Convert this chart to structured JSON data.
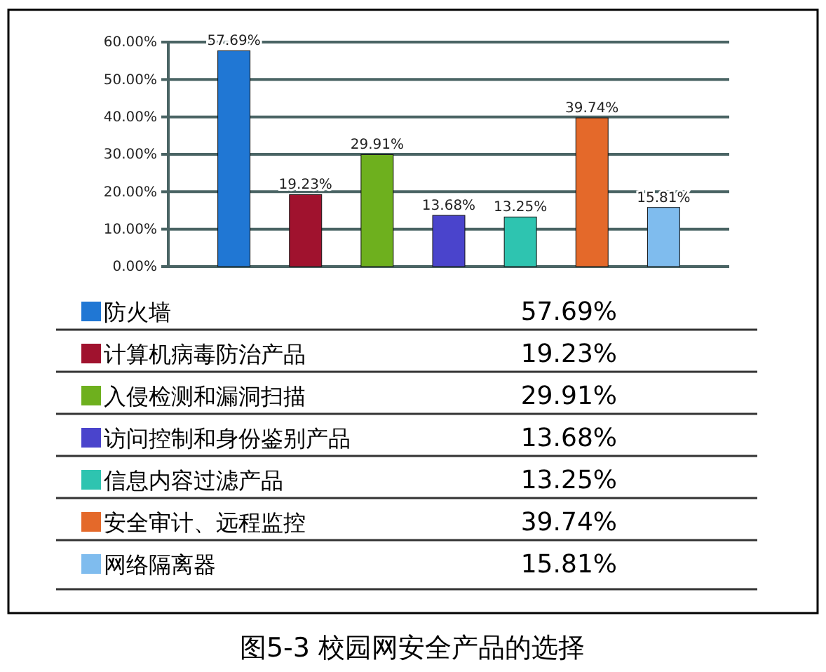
{
  "chart_data": {
    "type": "bar",
    "title": "图5-3 校园网安全产品的选择",
    "categories": [
      null
    ],
    "series": [
      {
        "name": "防火墙",
        "color": "#2077d4",
        "values": [
          57.69
        ],
        "value_labels": [
          "57.69%"
        ]
      },
      {
        "name": "计算机病毒防治产品",
        "color": "#a0122e",
        "values": [
          19.23
        ],
        "value_labels": [
          "19.23%"
        ]
      },
      {
        "name": "入侵检测和漏洞扫描",
        "color": "#6eb01e",
        "values": [
          29.91
        ],
        "value_labels": [
          "29.91%"
        ]
      },
      {
        "name": "访问控制和身份鉴别产品",
        "color": "#4a44cc",
        "values": [
          13.68
        ],
        "value_labels": [
          "13.68%"
        ]
      },
      {
        "name": "信息内容过滤产品",
        "color": "#2ec4b0",
        "values": [
          13.25
        ],
        "value_labels": [
          "13.25%"
        ]
      },
      {
        "name": "安全审计、远程监控",
        "color": "#e4692a",
        "values": [
          39.74
        ],
        "value_labels": [
          "39.74%"
        ]
      },
      {
        "name": "网络隔离器",
        "color": "#7fbcee",
        "values": [
          15.81
        ],
        "value_labels": [
          "15.81%"
        ]
      }
    ],
    "ylim": [
      0,
      60
    ],
    "yticks": [
      {
        "value": 0,
        "label": "0.00%"
      },
      {
        "value": 10,
        "label": "10.00%"
      },
      {
        "value": 20,
        "label": "20.00%"
      },
      {
        "value": 30,
        "label": "30.00%"
      },
      {
        "value": 40,
        "label": "40.00%"
      },
      {
        "value": 50,
        "label": "50.00%"
      },
      {
        "value": 60,
        "label": "60.00%"
      }
    ],
    "grid": "y",
    "legend": "bottom",
    "tick_labels": "y"
  }
}
